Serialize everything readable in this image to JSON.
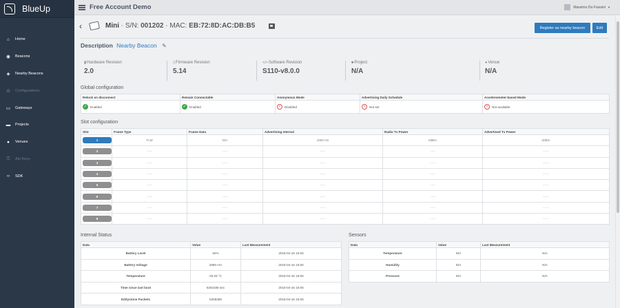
{
  "app": {
    "brand": "BlueUp",
    "account": "Free Account Demo",
    "user": "Massimo Da Frassini"
  },
  "sidebar": {
    "items": [
      {
        "label": "Home",
        "icon": "home-icon",
        "disabled": false
      },
      {
        "label": "Beacons",
        "icon": "beacon-icon",
        "disabled": false
      },
      {
        "label": "Nearby Beacons",
        "icon": "nearby-icon",
        "disabled": false
      },
      {
        "label": "Configurations",
        "icon": "configurations-icon",
        "disabled": true
      },
      {
        "label": "Gateways",
        "icon": "gateway-icon",
        "disabled": false
      },
      {
        "label": "Projects",
        "icon": "folder-icon",
        "disabled": false
      },
      {
        "label": "Venues",
        "icon": "map-marker-icon",
        "disabled": false
      },
      {
        "label": "Api Keys",
        "icon": "key-icon",
        "disabled": true
      },
      {
        "label": "SDK",
        "icon": "code-icon",
        "disabled": false
      }
    ]
  },
  "device": {
    "name": "Mini",
    "sn_label": "S/N:",
    "sn": "001202",
    "mac_label": "MAC:",
    "mac": "EB:72:8D:AC:DB:B5"
  },
  "buttons": {
    "register": "Register as nearby beacon",
    "edit": "Edit"
  },
  "description": {
    "label": "Description",
    "value": "Nearby Beacon"
  },
  "info": [
    {
      "label": "Hardware Revision",
      "value": "2.0"
    },
    {
      "label": "Firmware Revision",
      "value": "5.14"
    },
    {
      "label": "Software Revision",
      "value": "S110-v8.0.0"
    },
    {
      "label": "Project",
      "value": "N/A"
    },
    {
      "label": "Venue",
      "value": "N/A"
    }
  ],
  "global": {
    "title": "Global configuration",
    "headers": [
      "Relock on disconnect",
      "Remain Connectable",
      "Anonymous Mode",
      "Advertising Daily Schedule",
      "Accelerometer-based Mode"
    ],
    "values": [
      {
        "text": "Enabled",
        "ok": true
      },
      {
        "text": "Enabled",
        "ok": true
      },
      {
        "text": "Disabled",
        "ok": false
      },
      {
        "text": "Not set",
        "ok": false
      },
      {
        "text": "Not available",
        "ok": false
      }
    ]
  },
  "slots": {
    "title": "Slot configuration",
    "headers": [
      "Slot",
      "Frame Type",
      "Frame Data",
      "Advertising Interval",
      "Radio Tx Power",
      "Advertised Tx Power"
    ],
    "rows": [
      [
        "1",
        "TLM",
        "N/A",
        "1000 ms",
        "0dBm",
        "0dBm"
      ],
      [
        "2",
        "- - -",
        "- - -",
        "- - -",
        "- - -",
        "- - -"
      ],
      [
        "3",
        "- - -",
        "- - -",
        "- - -",
        "- - -",
        "- - -"
      ],
      [
        "4",
        "- - -",
        "- - -",
        "- - -",
        "- - -",
        "- - -"
      ],
      [
        "5",
        "- - -",
        "- - -",
        "- - -",
        "- - -",
        "- - -"
      ],
      [
        "6",
        "- - -",
        "- - -",
        "- - -",
        "- - -",
        "- - -"
      ],
      [
        "7",
        "- - -",
        "- - -",
        "- - -",
        "- - -",
        "- - -"
      ],
      [
        "8",
        "- - -",
        "- - -",
        "- - -",
        "- - -",
        "- - -"
      ]
    ]
  },
  "internal": {
    "title": "Internal Status",
    "headers": [
      "Data",
      "Value",
      "Last Measurement"
    ],
    "rows": [
      [
        "Battery Level",
        "92%",
        "2018-04-16 15:06"
      ],
      [
        "Battery Voltage",
        "2880 mV",
        "2018-04-16 15:06"
      ],
      [
        "Temperature",
        "25.25 °C",
        "2018-04-16 15:06"
      ],
      [
        "Time since last boot",
        "5284336 sec",
        "2018-04-16 15:06"
      ],
      [
        "Eddystone Packets",
        "5258386",
        "2018-04-16 15:06"
      ]
    ]
  },
  "sensors": {
    "title": "Sensors",
    "headers": [
      "Data",
      "Value",
      "Last Measurement"
    ],
    "rows": [
      [
        "Temperature",
        "N/A",
        "N/A"
      ],
      [
        "Humidity",
        "N/A",
        "N/A"
      ],
      [
        "Pressure",
        "N/A",
        "N/A"
      ]
    ]
  }
}
